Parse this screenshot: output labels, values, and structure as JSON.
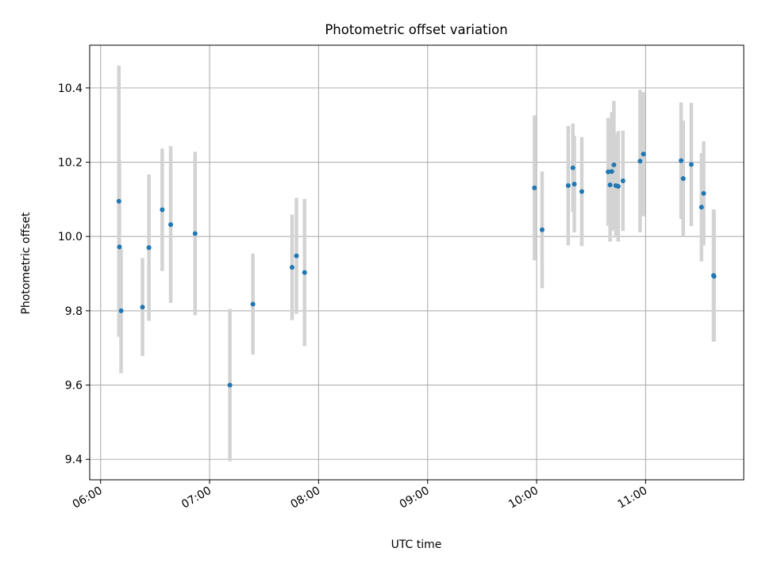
{
  "chart_data": {
    "type": "scatter",
    "title": "Photometric offset variation",
    "xlabel": "UTC time",
    "ylabel": "Photometric offset",
    "x_axis_type": "time",
    "xlim": [
      "05:54",
      "11:54"
    ],
    "ylim": [
      9.345,
      10.515
    ],
    "xticks": [
      "06:00",
      "07:00",
      "08:00",
      "09:00",
      "10:00",
      "11:00"
    ],
    "yticks": [
      9.4,
      9.6,
      9.8,
      10.0,
      10.2,
      10.4
    ],
    "ytick_labels": [
      "9.4",
      "9.6",
      "9.8",
      "10.0",
      "10.2",
      "10.4"
    ],
    "grid": true,
    "legend": "none",
    "colors": {
      "marker": "#1f77b4",
      "errorbar": "#d3d3d3",
      "grid": "#b0b0b0"
    },
    "points": [
      {
        "time": "06:10:05",
        "y": 10.095,
        "err": 0.365
      },
      {
        "time": "06:10:22",
        "y": 9.972,
        "err": 0.235
      },
      {
        "time": "06:11:17",
        "y": 9.8,
        "err": 0.168
      },
      {
        "time": "06:23:04",
        "y": 9.81,
        "err": 0.132
      },
      {
        "time": "06:26:36",
        "y": 9.97,
        "err": 0.197
      },
      {
        "time": "06:33:55",
        "y": 10.072,
        "err": 0.165
      },
      {
        "time": "06:38:35",
        "y": 10.032,
        "err": 0.211
      },
      {
        "time": "06:52:01",
        "y": 10.008,
        "err": 0.22
      },
      {
        "time": "07:11:10",
        "y": 9.6,
        "err": 0.205
      },
      {
        "time": "07:23:50",
        "y": 9.818,
        "err": 0.136
      },
      {
        "time": "07:45:24",
        "y": 9.917,
        "err": 0.142
      },
      {
        "time": "07:47:49",
        "y": 9.948,
        "err": 0.156
      },
      {
        "time": "07:52:17",
        "y": 9.903,
        "err": 0.198
      },
      {
        "time": "09:58:49",
        "y": 10.131,
        "err": 0.195
      },
      {
        "time": "10:03:01",
        "y": 10.018,
        "err": 0.157
      },
      {
        "time": "10:17:23",
        "y": 10.137,
        "err": 0.161
      },
      {
        "time": "10:19:57",
        "y": 10.185,
        "err": 0.119
      },
      {
        "time": "10:20:45",
        "y": 10.141,
        "err": 0.13
      },
      {
        "time": "10:24:52",
        "y": 10.121,
        "err": 0.147
      },
      {
        "time": "10:39:22",
        "y": 10.174,
        "err": 0.145
      },
      {
        "time": "10:40:26",
        "y": 10.139,
        "err": 0.153
      },
      {
        "time": "10:41:21",
        "y": 10.175,
        "err": 0.16
      },
      {
        "time": "10:42:32",
        "y": 10.193,
        "err": 0.172
      },
      {
        "time": "10:43:35",
        "y": 10.137,
        "err": 0.14
      },
      {
        "time": "10:44:55",
        "y": 10.135,
        "err": 0.149
      },
      {
        "time": "10:47:32",
        "y": 10.15,
        "err": 0.135
      },
      {
        "time": "10:56:56",
        "y": 10.203,
        "err": 0.192
      },
      {
        "time": "10:58:48",
        "y": 10.222,
        "err": 0.167
      },
      {
        "time": "11:19:32",
        "y": 10.204,
        "err": 0.157
      },
      {
        "time": "11:20:41",
        "y": 10.156,
        "err": 0.156
      },
      {
        "time": "11:25:08",
        "y": 10.194,
        "err": 0.166
      },
      {
        "time": "11:30:44",
        "y": 10.079,
        "err": 0.146
      },
      {
        "time": "11:31:57",
        "y": 10.116,
        "err": 0.14
      },
      {
        "time": "11:37:22",
        "y": 9.895,
        "err": 0.178
      },
      {
        "time": "11:37:40",
        "y": 9.893,
        "err": 0.176
      }
    ]
  }
}
